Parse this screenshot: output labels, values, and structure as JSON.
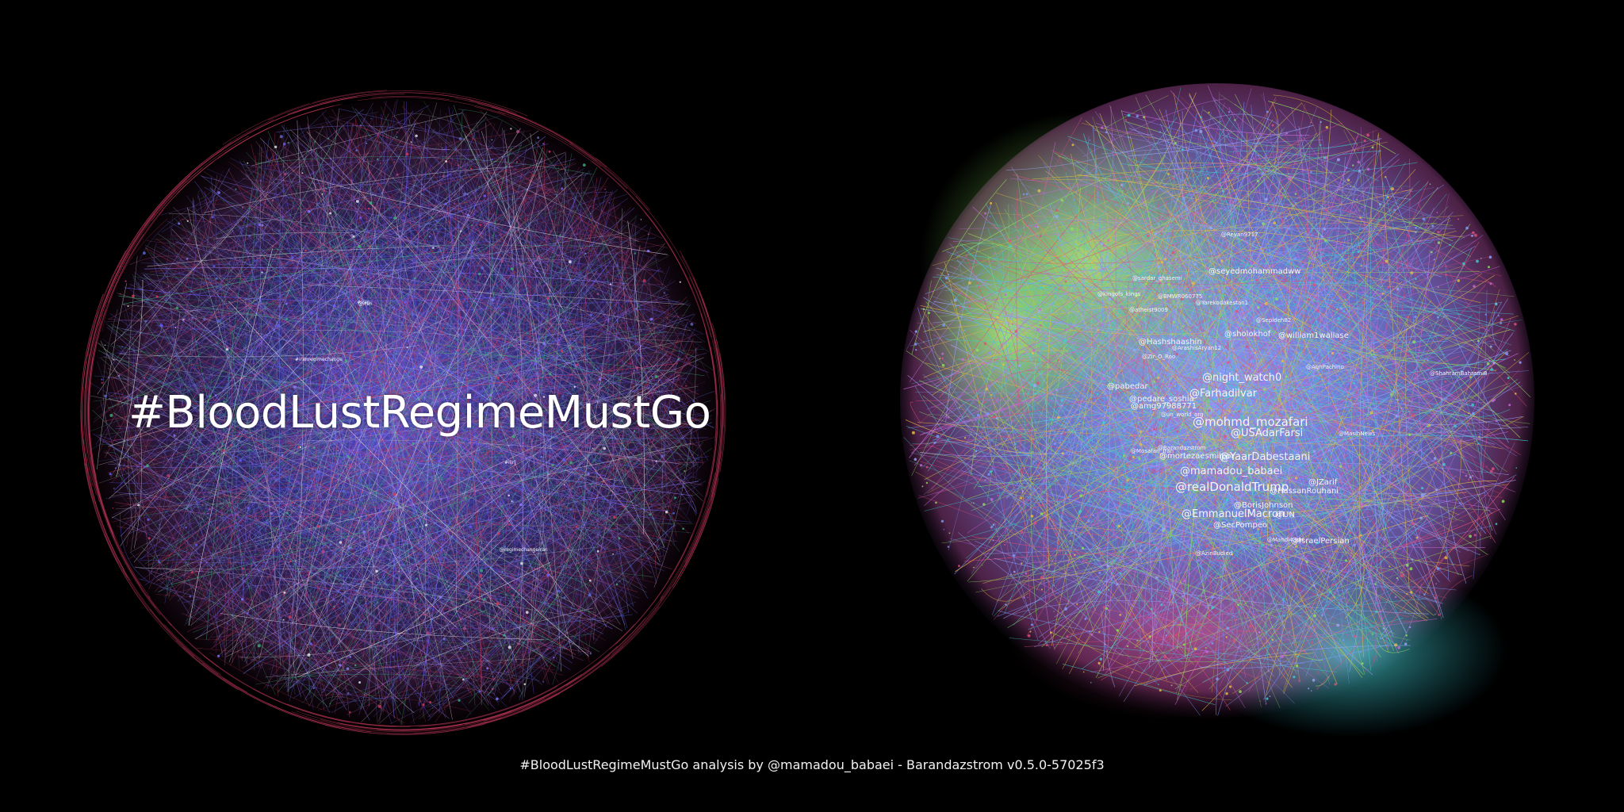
{
  "title": "#BloodLustRegimeMustGo",
  "footer": "#BloodLustRegimeMustGo analysis by @mamadou_babaei - Barandazstrom v0.5.0-57025f3",
  "colors": {
    "background": "#000000",
    "left_palette": [
      "#6a5cff",
      "#8a7dff",
      "#b04a8a",
      "#d63a5a",
      "#e8e8f0",
      "#5a6bd8",
      "#3fb27a"
    ],
    "right_palette": [
      "#7a9cff",
      "#9aa8ff",
      "#8fe060",
      "#3fd0d0",
      "#c86ad8",
      "#e0507a",
      "#e8c040"
    ]
  },
  "left_labels": [
    {
      "text": "@iran"
    },
    {
      "text": "#iranregimechange"
    },
    {
      "text": "#iran"
    },
    {
      "text": "#ilirj"
    },
    {
      "text": "@regimechangeiran"
    }
  ],
  "right_labels": [
    {
      "text": "@Reyan9717",
      "size": "s"
    },
    {
      "text": "@seyedmohammadww",
      "size": "m"
    },
    {
      "text": "@sardar_ghasemi",
      "size": "s"
    },
    {
      "text": "@kingofs_kings",
      "size": "s"
    },
    {
      "text": "@BMWR060775",
      "size": "s"
    },
    {
      "text": "@Yarekodakestan1",
      "size": "s"
    },
    {
      "text": "@atheist9009",
      "size": "s"
    },
    {
      "text": "@Sepideh82",
      "size": "s"
    },
    {
      "text": "@sholokhof",
      "size": "m"
    },
    {
      "text": "@william1wallase",
      "size": "m"
    },
    {
      "text": "@Hashshaashin",
      "size": "m"
    },
    {
      "text": "@ArashisAryan12",
      "size": "s"
    },
    {
      "text": "@Zir_O_Roo",
      "size": "s"
    },
    {
      "text": "@AghPachino",
      "size": "s"
    },
    {
      "text": "@ShahramBahrami8",
      "size": "s"
    },
    {
      "text": "@night_watch0",
      "size": "l"
    },
    {
      "text": "@pabedar",
      "size": "m"
    },
    {
      "text": "@Farhadilvar",
      "size": "l"
    },
    {
      "text": "@pedare_soshia",
      "size": "m"
    },
    {
      "text": "@amg97988771",
      "size": "m"
    },
    {
      "text": "@un_world_org",
      "size": "s"
    },
    {
      "text": "@mohmd_mozafari",
      "size": "xl"
    },
    {
      "text": "@USAdarFarsi",
      "size": "l"
    },
    {
      "text": "@MasihNews",
      "size": "s"
    },
    {
      "text": "@Barandazstrom",
      "size": "s"
    },
    {
      "text": "@Mosafari_Iran",
      "size": "s"
    },
    {
      "text": "@mortezaesmilpor",
      "size": "m"
    },
    {
      "text": "@YaarDabestaani",
      "size": "l"
    },
    {
      "text": "@mamadou_babaei",
      "size": "l"
    },
    {
      "text": "@realDonaldTrump",
      "size": "xl"
    },
    {
      "text": "@JZarif",
      "size": "m"
    },
    {
      "text": "@HassanRouhani",
      "size": "m"
    },
    {
      "text": "@BorisJohnson",
      "size": "m"
    },
    {
      "text": "@EmmanuelMacron",
      "size": "l"
    },
    {
      "text": "@UN",
      "size": "m"
    },
    {
      "text": "@SecPompeo",
      "size": "m"
    },
    {
      "text": "@IsraelPersian",
      "size": "m"
    },
    {
      "text": "@Mahdi43dd",
      "size": "s"
    },
    {
      "text": "@AzinBudied",
      "size": "s"
    }
  ]
}
